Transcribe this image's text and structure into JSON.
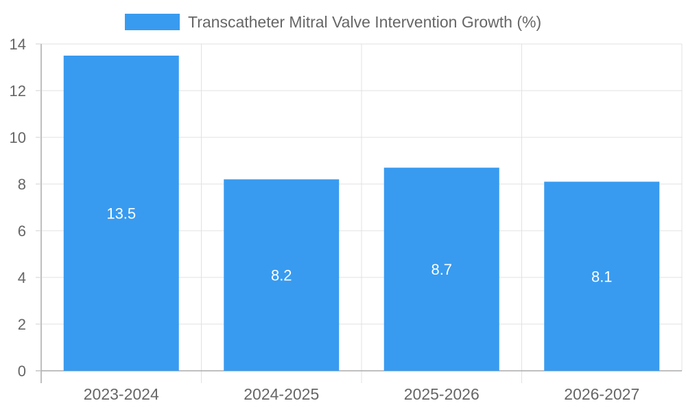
{
  "chart_data": {
    "type": "bar",
    "categories": [
      "2023-2024",
      "2024-2025",
      "2025-2026",
      "2026-2027"
    ],
    "series": [
      {
        "name": "Transcatheter Mitral Valve Intervention Growth (%)",
        "values": [
          13.5,
          8.2,
          8.7,
          8.1
        ],
        "color": "#389BF0"
      }
    ],
    "title": "",
    "xlabel": "",
    "ylabel": "",
    "ylim": [
      0,
      14
    ],
    "yticks": [
      0,
      2,
      4,
      6,
      8,
      10,
      12,
      14
    ],
    "grid": true,
    "legend": "top-center"
  }
}
